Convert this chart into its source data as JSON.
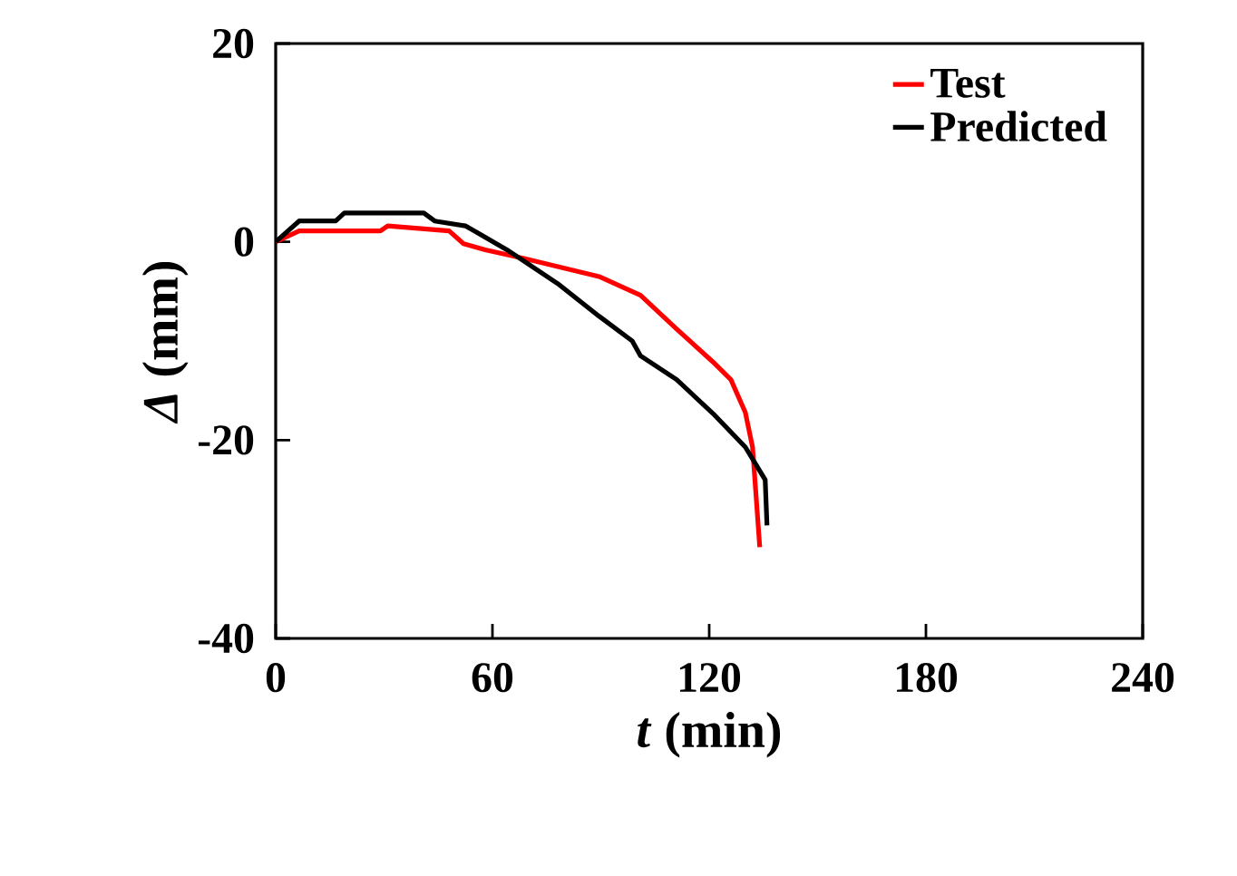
{
  "chart_data": {
    "type": "line",
    "xlabel": "*t*  (min)",
    "ylabel": "*Δ* (mm)",
    "xlim": [
      0,
      240
    ],
    "ylim": [
      -40,
      20
    ],
    "xticks": [
      0,
      60,
      120,
      180,
      240
    ],
    "yticks": [
      -40,
      -20,
      0,
      20
    ],
    "legend": "top right",
    "grid": false,
    "marker": "none",
    "line_style": "solid",
    "series": [
      {
        "name": "Test",
        "color": "#ff0000",
        "x": [
          0,
          6.5,
          29,
          31,
          48,
          52,
          58,
          69,
          89.5,
          101,
          111,
          121,
          126,
          130,
          132,
          134
        ],
        "values": [
          0,
          1.1,
          1.1,
          1.6,
          1.1,
          -0.2,
          -0.8,
          -1.7,
          -3.5,
          -5.4,
          -8.8,
          -12.1,
          -13.9,
          -17.2,
          -20.7,
          -30.8
        ]
      },
      {
        "name": "Predicted",
        "color": "#000000",
        "x": [
          0,
          6.5,
          16.6,
          19,
          41,
          44,
          52.6,
          64,
          78,
          89.5,
          98.7,
          101,
          111,
          121,
          130,
          135.5,
          136
        ],
        "values": [
          0,
          2.1,
          2.1,
          2.9,
          2.9,
          2.1,
          1.6,
          -0.8,
          -4.2,
          -7.5,
          -10,
          -11.5,
          -13.9,
          -17.3,
          -20.7,
          -24,
          -28.6
        ]
      }
    ]
  }
}
